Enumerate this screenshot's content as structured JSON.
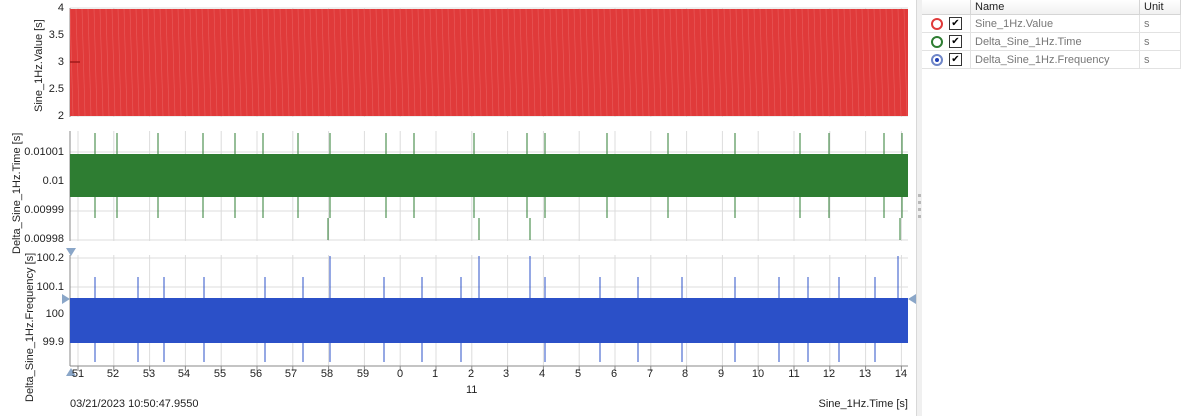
{
  "plots": [
    {
      "id": "sine",
      "ylabel": "Sine_1Hz.Value [s]",
      "yticks": [
        "4",
        "3.5",
        "3",
        "2.5",
        "2"
      ],
      "color": "#e03a3a"
    },
    {
      "id": "delta-time",
      "ylabel": "Delta_Sine_1Hz.Time [s]",
      "yticks": [
        "0.01001",
        "0.01",
        "0.00999",
        "0.00998"
      ],
      "color": "#2e7d32"
    },
    {
      "id": "delta-freq",
      "ylabel": "Delta_Sine_1Hz.Frequency [s]",
      "yticks": [
        "100.2",
        "100.1",
        "100",
        "99.9"
      ],
      "color": "#2b50c8"
    }
  ],
  "x_axis": {
    "ticks": [
      "51",
      "52",
      "53",
      "54",
      "55",
      "56",
      "57",
      "58",
      "59",
      "0",
      "1",
      "2",
      "3",
      "4",
      "5",
      "6",
      "7",
      "8",
      "9",
      "10",
      "11",
      "12",
      "13",
      "14"
    ],
    "sublabel": "11",
    "label": "Sine_1Hz.Time [s]",
    "timestamp": "03/21/2023 10:50:47.9550"
  },
  "legend": {
    "columns": [
      "Name",
      "Unit"
    ],
    "rows": [
      {
        "name": "Sine_1Hz.Value",
        "unit": "s",
        "color": "#e03a3a",
        "icon": "circle-outline-icon",
        "checked": true
      },
      {
        "name": "Delta_Sine_1Hz.Time",
        "unit": "s",
        "color": "#2e7d32",
        "icon": "circle-outline-icon",
        "checked": true
      },
      {
        "name": "Delta_Sine_1Hz.Frequency",
        "unit": "s",
        "color": "#1f3fb5",
        "icon": "circle-dot-icon",
        "checked": true
      }
    ]
  }
}
